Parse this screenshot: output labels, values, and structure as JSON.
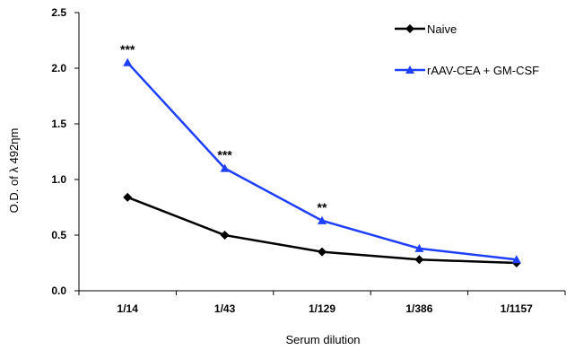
{
  "chart_data": {
    "type": "line",
    "categories": [
      "1/14",
      "1/43",
      "1/129",
      "1/386",
      "1/1157"
    ],
    "series": [
      {
        "name": "Naive",
        "values": [
          0.84,
          0.5,
          0.35,
          0.28,
          0.25
        ],
        "color": "#000000",
        "marker": "diamond"
      },
      {
        "name": "rAAV-CEA + GM-CSF",
        "values": [
          2.05,
          1.1,
          0.63,
          0.38,
          0.28
        ],
        "color": "#1f3fff",
        "marker": "triangle"
      }
    ],
    "annotations": [
      {
        "category": "1/14",
        "text": "***"
      },
      {
        "category": "1/43",
        "text": "***"
      },
      {
        "category": "1/129",
        "text": "**"
      }
    ],
    "xlabel": "Serum dilution",
    "ylabel": "O.D. of λ 492ηm",
    "ylim": [
      0,
      2.5
    ],
    "yticks": [
      "0.0",
      "0.5",
      "1.0",
      "1.5",
      "2.0",
      "2.5"
    ],
    "grid": false,
    "legend_position": "top-right"
  }
}
